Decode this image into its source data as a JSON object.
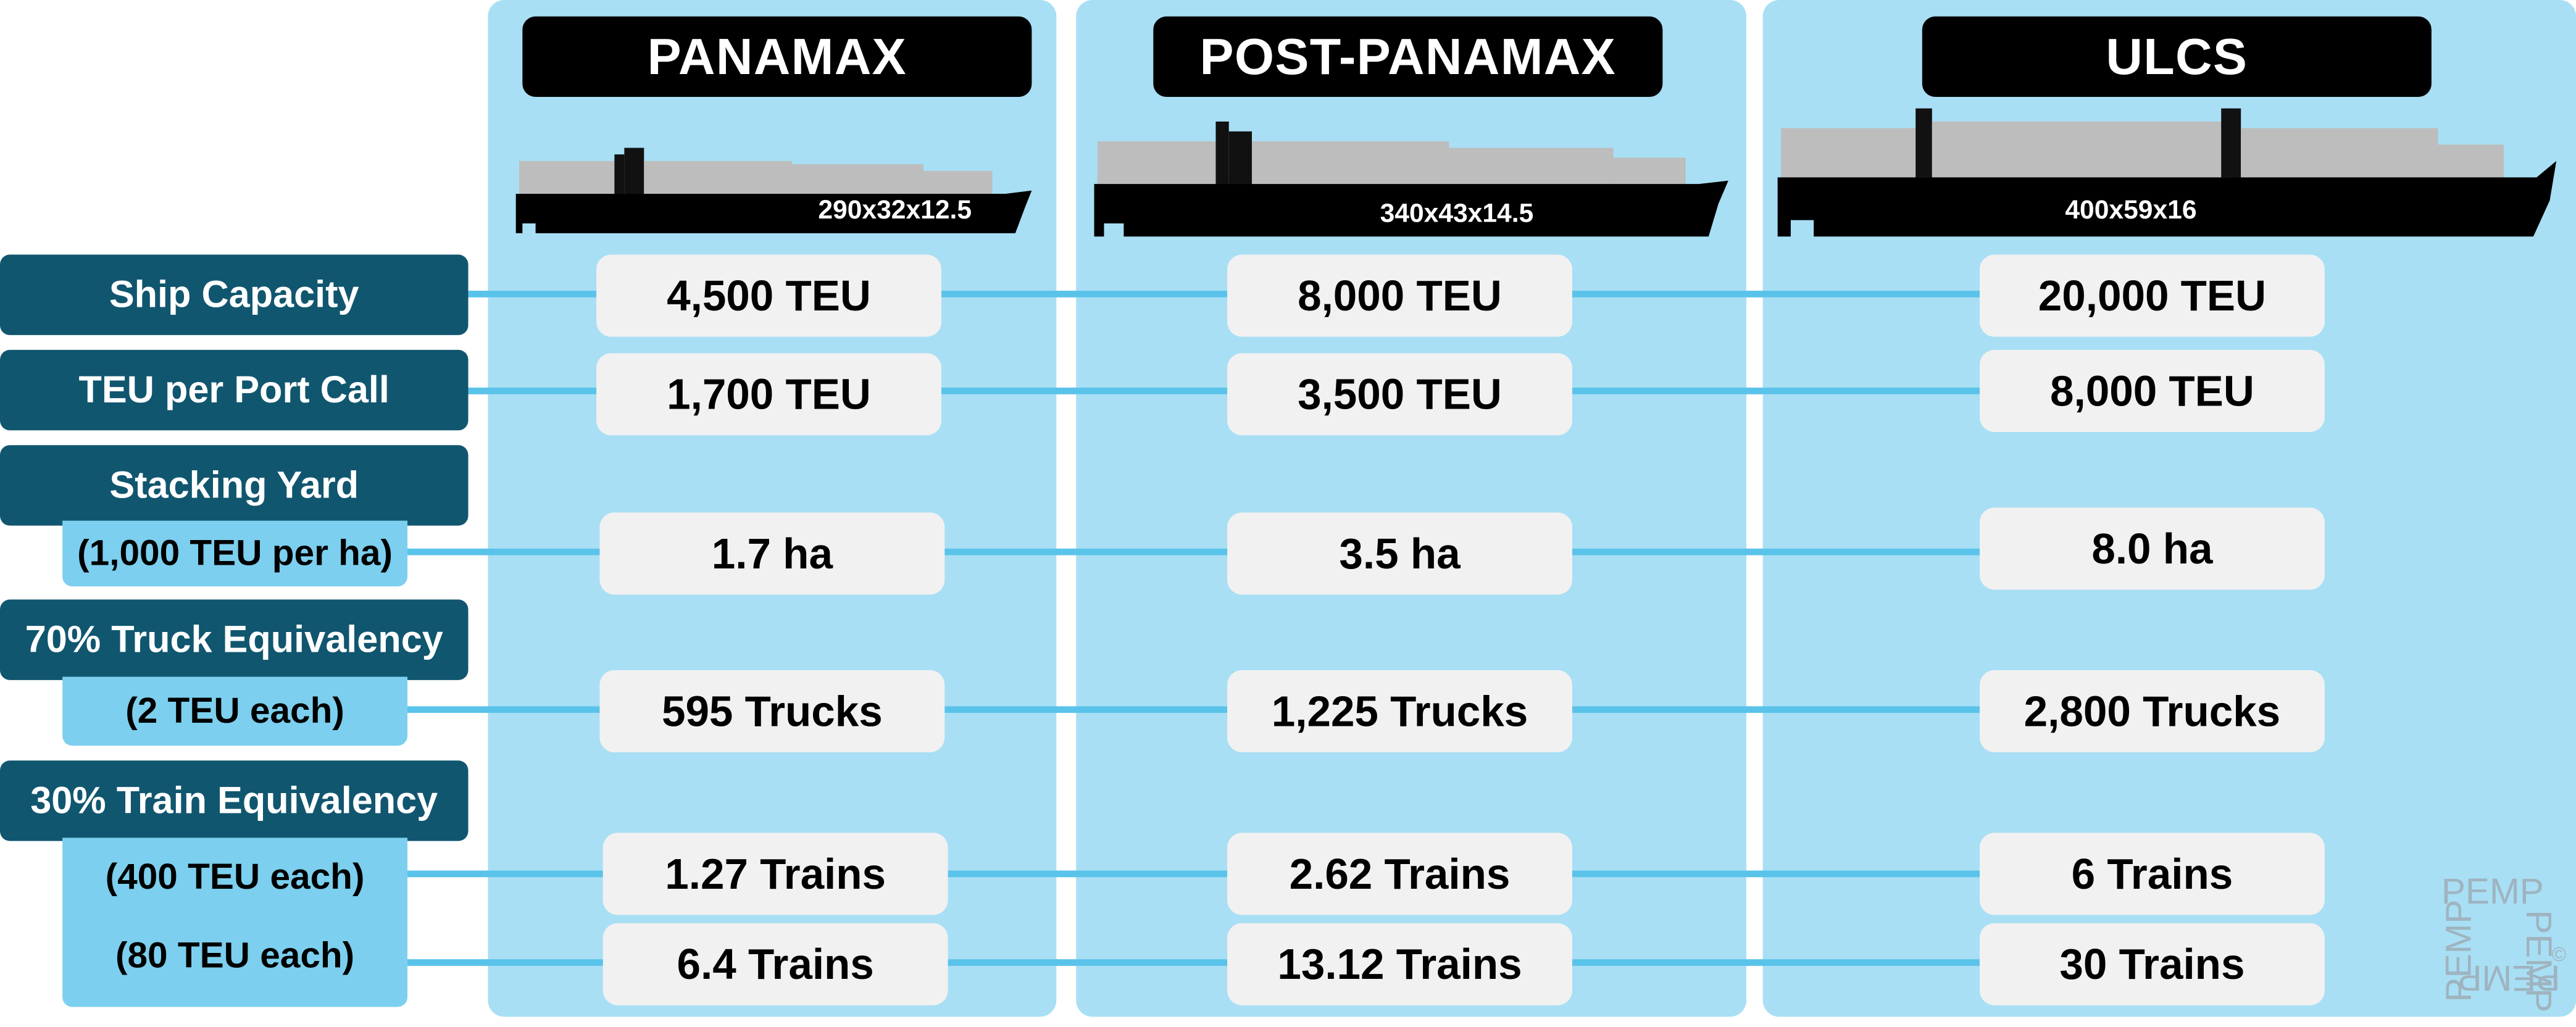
{
  "columns": [
    {
      "name": "PANAMAX",
      "dims": "290x32x12.5",
      "values": [
        "4,500 TEU",
        "1,700 TEU",
        "1.7 ha",
        "595 Trucks",
        "1.27 Trains",
        "6.4 Trains"
      ]
    },
    {
      "name": "POST-PANAMAX",
      "dims": "340x43x14.5",
      "values": [
        "8,000 TEU",
        "3,500 TEU",
        "3.5 ha",
        "1,225 Trucks",
        "2.62 Trains",
        "13.12 Trains"
      ]
    },
    {
      "name": "ULCS",
      "dims": "400x59x16",
      "values": [
        "20,000 TEU",
        "8,000 TEU",
        "8.0 ha",
        "2,800 Trucks",
        "6 Trains",
        "30 Trains"
      ]
    }
  ],
  "rows": {
    "ship_capacity": "Ship Capacity",
    "teu_per_port_call": "TEU per Port Call",
    "stacking_yard": "Stacking Yard",
    "stacking_yard_sub": "(1,000 TEU per ha)",
    "truck_equivalency": "70% Truck Equivalency",
    "truck_sub": "(2 TEU each)",
    "train_equivalency": "30% Train Equivalency",
    "train_sub_1": "(400 TEU each)",
    "train_sub_2": "(80 TEU each)"
  },
  "watermark": {
    "text": "PEMP",
    "mark": "©"
  },
  "colors": {
    "column_bg": "#a8dff4",
    "label_dark": "#11566f",
    "label_light": "#7ccfee",
    "connector": "#5ac3ea",
    "cell_bg": "#f1f1f1",
    "header_bg": "#000000"
  }
}
